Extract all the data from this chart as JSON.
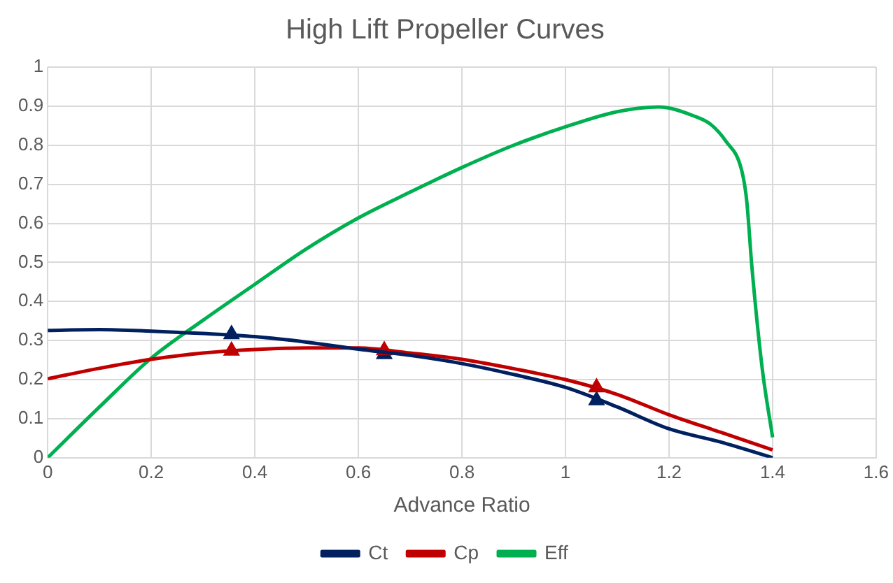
{
  "chart_data": {
    "type": "line",
    "title": "High Lift Propeller Curves",
    "xlabel": "Advance Ratio",
    "xlim": [
      0,
      1.6
    ],
    "xticks": [
      0,
      0.2,
      0.4,
      0.6,
      0.8,
      1,
      1.2,
      1.4,
      1.6
    ],
    "ylim": [
      0,
      1
    ],
    "yticks": [
      0,
      0.1,
      0.2,
      0.3,
      0.4,
      0.5,
      0.6,
      0.7,
      0.8,
      0.9,
      1
    ],
    "grid": true,
    "legend": "bottom",
    "marker": "none",
    "line_style": "solid",
    "series": [
      {
        "name": "Ct",
        "color": "#002060",
        "x": [
          0,
          0.1,
          0.2,
          0.3,
          0.4,
          0.5,
          0.6,
          0.7,
          0.8,
          0.9,
          1,
          1.1,
          1.2,
          1.3,
          1.4
        ],
        "values": [
          0.326,
          0.328,
          0.324,
          0.318,
          0.31,
          0.296,
          0.278,
          0.262,
          0.241,
          0.213,
          0.18,
          0.13,
          0.074,
          0.04,
          0
        ]
      },
      {
        "name": "Cp",
        "color": "#c00000",
        "x": [
          0,
          0.1,
          0.2,
          0.3,
          0.4,
          0.5,
          0.6,
          0.7,
          0.8,
          0.9,
          1,
          1.1,
          1.2,
          1.3,
          1.4
        ],
        "values": [
          0.202,
          0.229,
          0.252,
          0.268,
          0.277,
          0.281,
          0.281,
          0.268,
          0.252,
          0.228,
          0.2,
          0.162,
          0.11,
          0.065,
          0.02
        ]
      },
      {
        "name": "Eff",
        "color": "#00b050",
        "x": [
          0,
          0.1,
          0.2,
          0.3,
          0.4,
          0.5,
          0.6,
          0.7,
          0.8,
          0.9,
          1,
          1.1,
          1.18,
          1.25,
          1.28,
          1.31,
          1.34,
          1.35,
          1.36,
          1.38,
          1.4
        ],
        "values": [
          0,
          0.13,
          0.255,
          0.352,
          0.444,
          0.535,
          0.614,
          0.68,
          0.743,
          0.8,
          0.847,
          0.886,
          0.898,
          0.874,
          0.854,
          0.81,
          0.737,
          0.658,
          0.489,
          0.228,
          0.052
        ]
      },
      {
        "type": "scatter",
        "color": "#c00000",
        "marker": "triangle",
        "x": [
          0.355,
          0.65,
          1.06
        ],
        "values": [
          0.274,
          0.275,
          0.18
        ]
      },
      {
        "type": "scatter",
        "color": "#002060",
        "marker": "triangle",
        "x": [
          0.355,
          0.65,
          1.06
        ],
        "values": [
          0.316,
          0.265,
          0.147
        ]
      }
    ]
  }
}
